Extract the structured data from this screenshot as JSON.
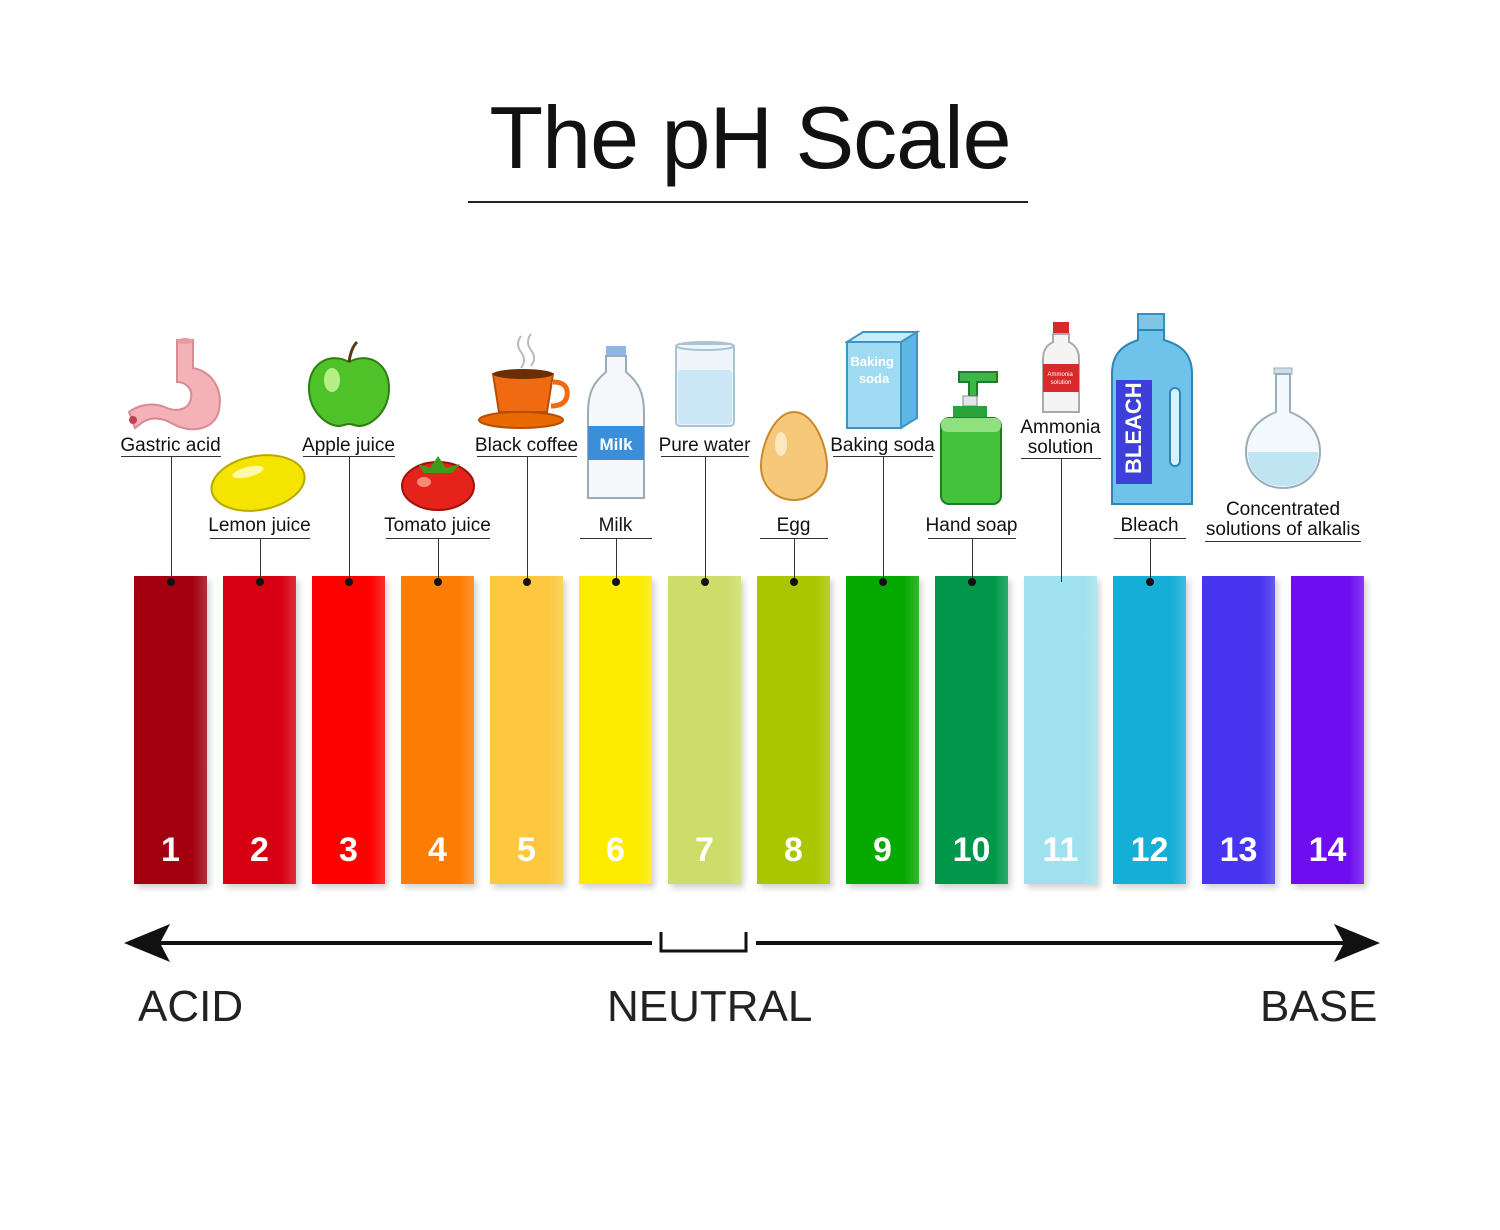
{
  "title": "The pH Scale",
  "scale": [
    {
      "ph": "1",
      "color": "#a3000f"
    },
    {
      "ph": "2",
      "color": "#d70012"
    },
    {
      "ph": "3",
      "color": "#fd0100"
    },
    {
      "ph": "4",
      "color": "#fd7d04"
    },
    {
      "ph": "5",
      "color": "#fdc840"
    },
    {
      "ph": "6",
      "color": "#fdeb00"
    },
    {
      "ph": "7",
      "color": "#cddd6a"
    },
    {
      "ph": "8",
      "color": "#a9c600"
    },
    {
      "ph": "9",
      "color": "#05a900"
    },
    {
      "ph": "10",
      "color": "#00974a"
    },
    {
      "ph": "11",
      "color": "#9fe1ee"
    },
    {
      "ph": "12",
      "color": "#14aed6"
    },
    {
      "ph": "13",
      "color": "#4634ee"
    },
    {
      "ph": "14",
      "color": "#6e0ef0"
    }
  ],
  "substances": [
    {
      "label": "Gastric acid",
      "ph": 1,
      "icon": "stomach-icon"
    },
    {
      "label": "Lemon juice",
      "ph": 2,
      "icon": "lemon-icon"
    },
    {
      "label": "Apple juice",
      "ph": 3,
      "icon": "apple-icon"
    },
    {
      "label": "Tomato juice",
      "ph": 4,
      "icon": "tomato-icon"
    },
    {
      "label": "Black coffee",
      "ph": 5,
      "icon": "coffee-cup-icon"
    },
    {
      "label": "Milk",
      "ph": 6,
      "icon": "milk-bottle-icon"
    },
    {
      "label": "Pure water",
      "ph": 7,
      "icon": "water-glass-icon"
    },
    {
      "label": "Egg",
      "ph": 8,
      "icon": "egg-icon"
    },
    {
      "label": "Baking soda",
      "ph": 9,
      "icon": "baking-soda-box-icon"
    },
    {
      "label": "Hand soap",
      "ph": 10,
      "icon": "soap-dispenser-icon"
    },
    {
      "label": "Ammonia\nsolution",
      "ph": 11,
      "icon": "ammonia-bottle-icon"
    },
    {
      "label": "Bleach",
      "ph": 12,
      "icon": "bleach-bottle-icon"
    },
    {
      "label": "Concentrated\nsolutions of alkalis",
      "ph": 13.5,
      "icon": "flask-icon"
    }
  ],
  "icon_text": {
    "milk": "Milk",
    "baking_soda": "Baking\nsoda",
    "ammonia": "Ammonia\nsolution",
    "bleach": "BLEACH"
  },
  "zones": {
    "acid": "ACID",
    "neutral": "NEUTRAL",
    "base": "BASE"
  }
}
